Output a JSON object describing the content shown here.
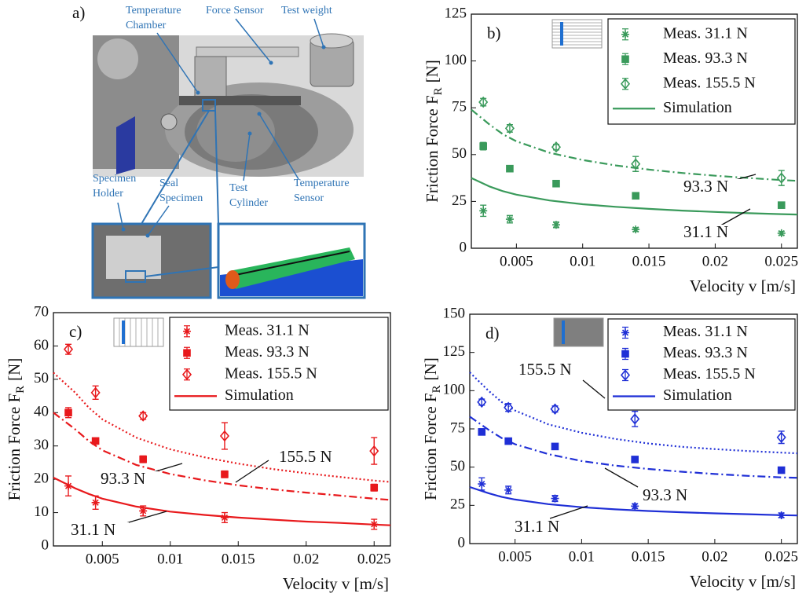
{
  "panel_a": {
    "label": "a)",
    "callouts": [
      {
        "lines": [
          "Temperature",
          "Chamber"
        ]
      },
      {
        "lines": [
          "Force Sensor"
        ]
      },
      {
        "lines": [
          "Test weight"
        ]
      },
      {
        "lines": [
          "Specimen",
          "Holder"
        ]
      },
      {
        "lines": [
          "Seal",
          "Specimen"
        ]
      },
      {
        "lines": [
          "Test",
          "Cylinder"
        ]
      },
      {
        "lines": [
          "Temperature",
          "Sensor"
        ]
      }
    ]
  },
  "chart_data": [
    {
      "type": "errorbar",
      "panel": "b)",
      "xlabel": "Velocity v [m/s]",
      "ylabel": "Friction Force F",
      "ylabel_sub": "R",
      "ylabel_unit": "[N]",
      "xlim": [
        0.0016,
        0.0262
      ],
      "ylim": [
        0,
        125
      ],
      "xticks": [
        0.005,
        0.01,
        0.015,
        0.02,
        0.025
      ],
      "yticks": [
        0,
        25,
        50,
        75,
        100,
        125
      ],
      "grid": false,
      "legend": "upper right",
      "x": [
        0.0025,
        0.0045,
        0.008,
        0.014,
        0.025
      ],
      "series": [
        {
          "name": "Meas. 31.1 N",
          "color": "#3a9a5b",
          "marker": "star",
          "values": [
            20,
            15.5,
            12.5,
            10,
            8
          ],
          "errors": [
            3,
            2,
            1.5,
            1,
            1
          ]
        },
        {
          "name": "Meas. 93.3 N",
          "color": "#3a9a5b",
          "marker": "square",
          "values": [
            54.5,
            42.5,
            34.5,
            28,
            23
          ],
          "errors": [
            2,
            1,
            1,
            1,
            1
          ]
        },
        {
          "name": "Meas. 155.5 N",
          "color": "#3a9a5b",
          "marker": "diamond",
          "values": [
            78,
            64,
            54,
            45,
            37.5
          ],
          "errors": [
            2,
            2,
            1.5,
            4,
            4
          ]
        }
      ],
      "simulation": {
        "name": "Simulation",
        "color": "#3a9a5b",
        "x": [
          0.0016,
          0.003,
          0.004,
          0.005,
          0.0075,
          0.01,
          0.0125,
          0.015,
          0.0175,
          0.02,
          0.0225,
          0.025,
          0.0262
        ],
        "curves": [
          {
            "style": "solid",
            "values": [
              37.5,
              32.9,
              30.4,
              28.6,
              25.5,
              23.5,
              22.1,
              21,
              20.1,
              19.4,
              18.7,
              18.2,
              18
            ]
          },
          {
            "style": "dashdot",
            "values": [
              74,
              65.9,
              60.8,
              57.1,
              51,
              47.1,
              44.2,
              42,
              40.2,
              38.7,
              37.5,
              36.4,
              36
            ]
          }
        ]
      },
      "annotations": [
        "93.3 N",
        "31.1 N"
      ]
    },
    {
      "type": "errorbar",
      "panel": "c)",
      "xlabel": "Velocity v [m/s]",
      "ylabel": "Friction Force F",
      "ylabel_sub": "R",
      "ylabel_unit": "[N]",
      "xlim": [
        0.0014,
        0.0262
      ],
      "ylim": [
        0,
        70
      ],
      "xticks": [
        0.005,
        0.01,
        0.015,
        0.02,
        0.025
      ],
      "yticks": [
        0,
        10,
        20,
        30,
        40,
        50,
        60,
        70
      ],
      "grid": false,
      "legend": "upper right",
      "x": [
        0.0025,
        0.0045,
        0.008,
        0.014,
        0.025
      ],
      "series": [
        {
          "name": "Meas. 31.1 N",
          "color": "#e8191c",
          "marker": "star",
          "values": [
            18,
            13,
            10.5,
            8.5,
            6.5
          ],
          "errors": [
            3,
            2,
            1.5,
            1.5,
            1.5
          ]
        },
        {
          "name": "Meas. 93.3 N",
          "color": "#e8191c",
          "marker": "square",
          "values": [
            40,
            31.5,
            26,
            21.5,
            17.5
          ],
          "errors": [
            1.5,
            0.5,
            1,
            1,
            1
          ]
        },
        {
          "name": "Meas. 155.5 N",
          "color": "#e8191c",
          "marker": "diamond",
          "values": [
            59,
            46,
            39,
            33,
            28.5
          ],
          "errors": [
            1.5,
            2,
            1,
            4,
            4
          ]
        }
      ],
      "simulation": {
        "name": "Simulation",
        "color": "#e8191c",
        "x": [
          0.0014,
          0.003,
          0.004,
          0.005,
          0.0075,
          0.01,
          0.0125,
          0.015,
          0.0175,
          0.02,
          0.0225,
          0.025,
          0.0262
        ],
        "curves": [
          {
            "style": "solid",
            "values": [
              20.5,
              17.3,
              15.6,
              14.2,
              11.8,
              10.3,
              9.3,
              8.5,
              7.9,
              7.3,
              6.9,
              6.4,
              6.2
            ]
          },
          {
            "style": "dashdot",
            "values": [
              40,
              35,
              31.5,
              28.7,
              24.3,
              21.6,
              19.7,
              18.2,
              17,
              16,
              15.1,
              14.2,
              13.8
            ]
          },
          {
            "style": "dotted",
            "values": [
              52,
              46,
              41.5,
              38,
              32.5,
              29,
              26.6,
              24.7,
              23.1,
              21.8,
              20.7,
              19.6,
              19.2
            ]
          }
        ]
      },
      "annotations": [
        "155.5 N",
        "93.3 N",
        "31.1 N"
      ]
    },
    {
      "type": "errorbar",
      "panel": "d)",
      "xlabel": "Velocity v [m/s]",
      "ylabel": "Friction Force F",
      "ylabel_sub": "R",
      "ylabel_unit": "[N]",
      "xlim": [
        0.0016,
        0.0262
      ],
      "ylim": [
        0,
        150
      ],
      "xticks": [
        0.005,
        0.01,
        0.015,
        0.02,
        0.025
      ],
      "yticks": [
        0,
        25,
        50,
        75,
        100,
        125,
        150
      ],
      "grid": false,
      "legend": "upper right",
      "x": [
        0.0025,
        0.0045,
        0.008,
        0.014,
        0.025
      ],
      "series": [
        {
          "name": "Meas. 31.1 N",
          "color": "#1f2fd6",
          "marker": "star",
          "values": [
            39,
            35,
            29.5,
            24.5,
            18.5
          ],
          "errors": [
            4,
            2.5,
            2,
            1.5,
            1.5
          ]
        },
        {
          "name": "Meas. 93.3 N",
          "color": "#1f2fd6",
          "marker": "square",
          "values": [
            73,
            67,
            63.5,
            55,
            48
          ],
          "errors": [
            2,
            1,
            1.5,
            1.5,
            1.5
          ]
        },
        {
          "name": "Meas. 155.5 N",
          "color": "#1f2fd6",
          "marker": "diamond",
          "values": [
            92.5,
            89,
            88,
            81.5,
            69.5
          ],
          "errors": [
            2,
            2.5,
            2,
            5,
            4
          ]
        }
      ],
      "simulation": {
        "name": "Simulation",
        "color": "#1f2fd6",
        "x": [
          0.0016,
          0.003,
          0.004,
          0.005,
          0.0075,
          0.01,
          0.0125,
          0.015,
          0.0175,
          0.02,
          0.0225,
          0.025,
          0.0262
        ],
        "curves": [
          {
            "style": "solid",
            "values": [
              37,
              33,
              30.5,
              28.8,
              25.8,
              23.8,
              22.4,
              21.3,
              20.5,
              19.8,
              19.2,
              18.6,
              18.4
            ]
          },
          {
            "style": "dashdot",
            "values": [
              83,
              74.5,
              69,
              65,
              58.5,
              54,
              51,
              48.8,
              47,
              45.5,
              44.3,
              43.3,
              43
            ]
          },
          {
            "style": "dotted",
            "values": [
              112,
              100,
              92.5,
              87,
              78,
              72.5,
              68.5,
              65.5,
              63.3,
              61.8,
              60.5,
              59.5,
              59
            ]
          }
        ]
      },
      "annotations": [
        "155.5 N",
        "93.3 N",
        "31.1 N"
      ]
    }
  ]
}
